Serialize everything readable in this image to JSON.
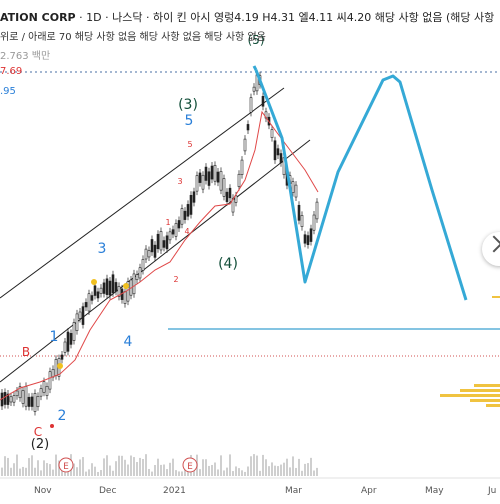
{
  "header": {
    "symbol": "ATION CORP",
    "interval": "· 1D ·",
    "exchange": "나스닥",
    "title_rest": "· 하이 킨 아시",
    "ohlc": "영렁4.19 H4.31 엘4.11 씨4.20 해당 사항 없음 (해당 사항",
    "line2": "위로 / 아래로 70 해당 사항 없음 해당 사항 없음 해당 사항 없음",
    "volume": "2.763 백만"
  },
  "price_labels": {
    "red_level": "7.69",
    "blue_level": ".95"
  },
  "x_axis": [
    "Nov",
    "Dec",
    "2021",
    "Mar",
    "Apr",
    "May",
    "Ju"
  ],
  "wave_labels": {
    "w2_paren": "(2)",
    "w1": "1",
    "w2": "2",
    "w3": "3",
    "w4": "4",
    "w5": "5",
    "w3_paren": "(3)",
    "w4_paren": "(4)",
    "w5_paren": "(5)",
    "B": "B",
    "C": "C",
    "sub1": "1",
    "sub2": "2",
    "sub3": "3",
    "sub4": "4",
    "sub5": "5"
  },
  "colors": {
    "up": "#222222",
    "ma": "#e04848",
    "projection": "#35a9d6",
    "blue_label": "#2a7fd8",
    "wave_dark": "#134f3a",
    "volume_profile": "#f0c340"
  },
  "event_marker": "E"
}
